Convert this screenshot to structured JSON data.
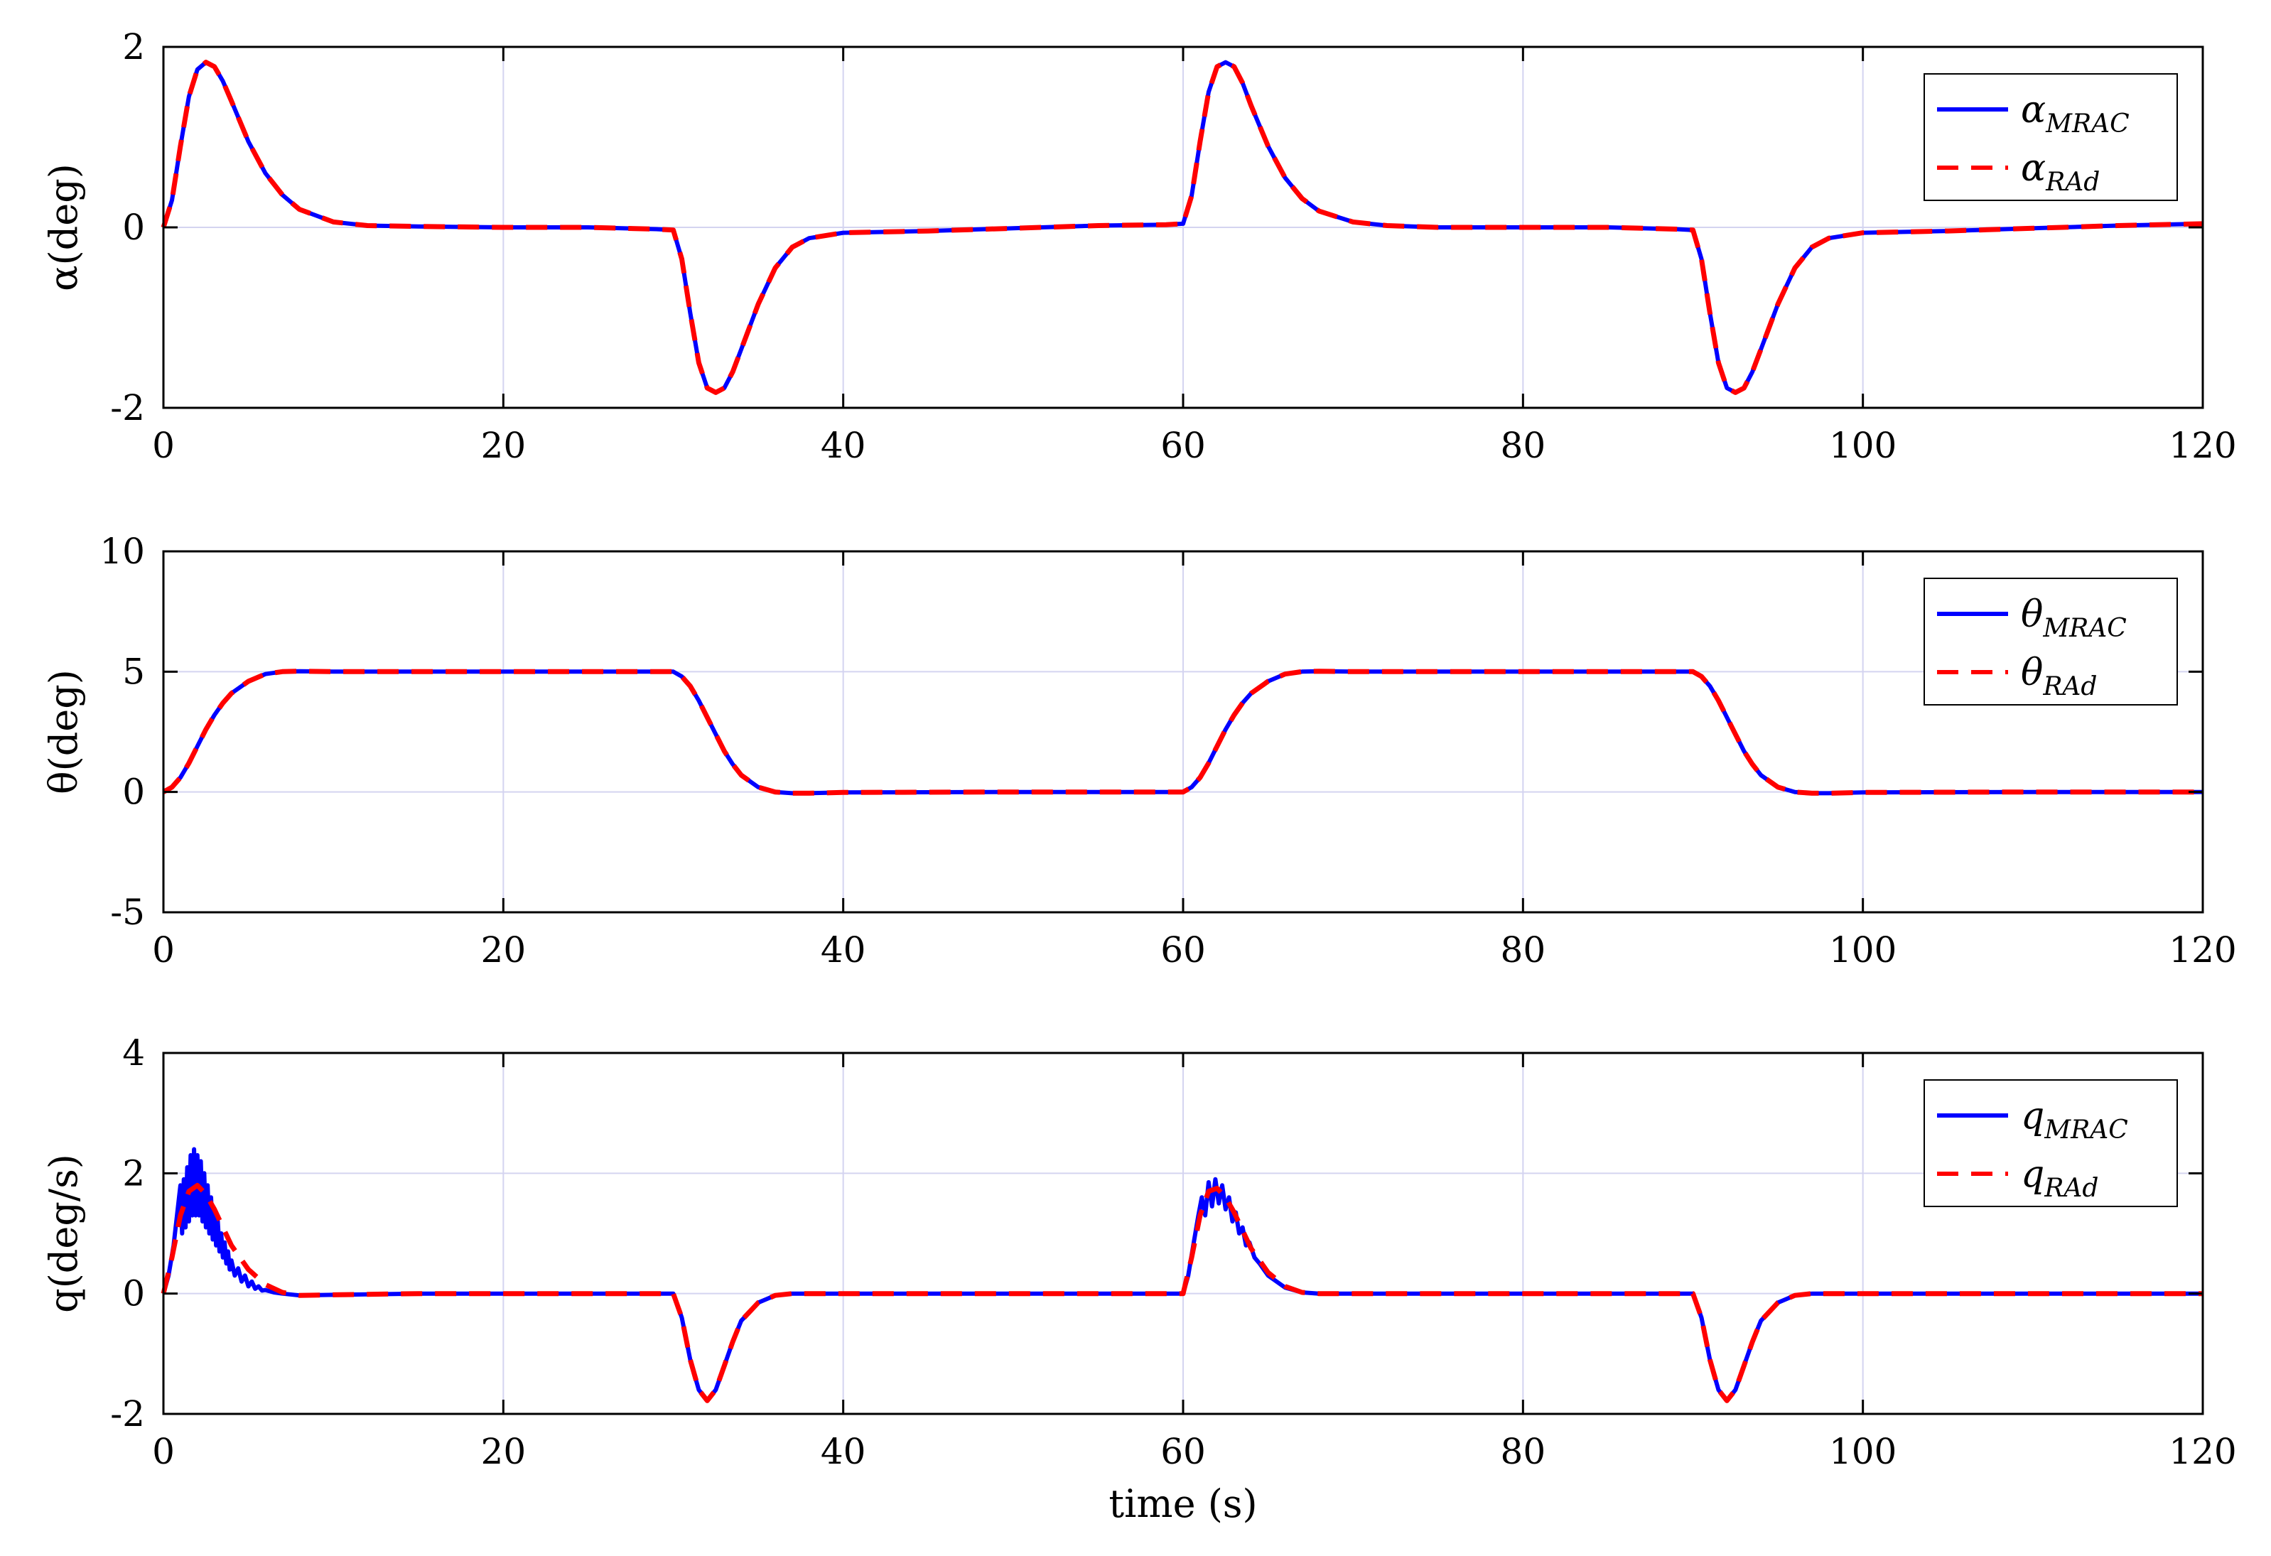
{
  "chart_data": [
    {
      "type": "line",
      "ylabel": "α(deg)",
      "xlim": [
        0,
        120
      ],
      "ylim": [
        -2,
        2
      ],
      "xticks": [
        0,
        20,
        40,
        60,
        80,
        100,
        120
      ],
      "yticks": [
        -2,
        0,
        2
      ],
      "grid": true,
      "legend_position": "top-right",
      "series": [
        {
          "name": "α_MRAC",
          "legend_base": "α",
          "legend_sub": "MRAC",
          "color": "#0000ff",
          "style": "solid",
          "x": [
            0,
            0.5,
            1,
            1.5,
            2,
            2.5,
            3,
            3.5,
            4,
            5,
            6,
            7,
            8,
            10,
            12,
            15,
            20,
            25,
            29,
            30,
            30.5,
            31,
            31.5,
            32,
            32.5,
            33,
            33.5,
            34,
            35,
            36,
            37,
            38,
            40,
            45,
            50,
            55,
            59,
            60,
            60.5,
            61,
            61.5,
            62,
            62.5,
            63,
            63.5,
            64,
            65,
            66,
            67,
            68,
            70,
            72,
            75,
            80,
            85,
            89,
            90,
            90.5,
            91,
            91.5,
            92,
            92.5,
            93,
            93.5,
            94,
            95,
            96,
            97,
            98,
            100,
            105,
            110,
            115,
            120
          ],
          "y": [
            0,
            0.3,
            0.9,
            1.45,
            1.75,
            1.83,
            1.78,
            1.62,
            1.4,
            0.95,
            0.6,
            0.36,
            0.2,
            0.06,
            0.02,
            0.01,
            0.0,
            0.0,
            -0.02,
            -0.03,
            -0.35,
            -0.95,
            -1.5,
            -1.78,
            -1.83,
            -1.78,
            -1.6,
            -1.35,
            -0.85,
            -0.45,
            -0.22,
            -0.12,
            -0.06,
            -0.04,
            -0.01,
            0.02,
            0.03,
            0.04,
            0.35,
            0.95,
            1.5,
            1.78,
            1.83,
            1.78,
            1.6,
            1.35,
            0.9,
            0.55,
            0.32,
            0.18,
            0.06,
            0.02,
            0.0,
            0.0,
            0.0,
            -0.02,
            -0.03,
            -0.35,
            -0.95,
            -1.5,
            -1.78,
            -1.83,
            -1.78,
            -1.6,
            -1.35,
            -0.85,
            -0.45,
            -0.22,
            -0.12,
            -0.06,
            -0.04,
            -0.01,
            0.02,
            0.04
          ]
        },
        {
          "name": "α_RAd",
          "legend_base": "α",
          "legend_sub": "RAd",
          "color": "#ff0000",
          "style": "dashed",
          "x": [
            0,
            0.5,
            1,
            1.5,
            2,
            2.5,
            3,
            3.5,
            4,
            5,
            6,
            7,
            8,
            10,
            12,
            15,
            20,
            25,
            29,
            30,
            30.5,
            31,
            31.5,
            32,
            32.5,
            33,
            33.5,
            34,
            35,
            36,
            37,
            38,
            40,
            45,
            50,
            55,
            59,
            60,
            60.5,
            61,
            61.5,
            62,
            62.5,
            63,
            63.5,
            64,
            65,
            66,
            67,
            68,
            70,
            72,
            75,
            80,
            85,
            89,
            90,
            90.5,
            91,
            91.5,
            92,
            92.5,
            93,
            93.5,
            94,
            95,
            96,
            97,
            98,
            100,
            105,
            110,
            115,
            120
          ],
          "y": [
            0,
            0.3,
            0.9,
            1.45,
            1.75,
            1.83,
            1.78,
            1.62,
            1.4,
            0.95,
            0.6,
            0.36,
            0.2,
            0.06,
            0.02,
            0.01,
            0.0,
            0.0,
            -0.02,
            -0.03,
            -0.35,
            -0.95,
            -1.5,
            -1.78,
            -1.83,
            -1.78,
            -1.6,
            -1.35,
            -0.85,
            -0.45,
            -0.22,
            -0.12,
            -0.06,
            -0.04,
            -0.01,
            0.02,
            0.03,
            0.04,
            0.35,
            0.95,
            1.5,
            1.78,
            1.83,
            1.78,
            1.6,
            1.35,
            0.9,
            0.55,
            0.32,
            0.18,
            0.06,
            0.02,
            0.0,
            0.0,
            0.0,
            -0.02,
            -0.03,
            -0.35,
            -0.95,
            -1.5,
            -1.78,
            -1.83,
            -1.78,
            -1.6,
            -1.35,
            -0.85,
            -0.45,
            -0.22,
            -0.12,
            -0.06,
            -0.04,
            -0.01,
            0.02,
            0.04
          ]
        }
      ]
    },
    {
      "type": "line",
      "ylabel": "θ(deg)",
      "xlim": [
        0,
        120
      ],
      "ylim": [
        -5,
        10
      ],
      "xticks": [
        0,
        20,
        40,
        60,
        80,
        100,
        120
      ],
      "yticks": [
        -5,
        0,
        5,
        10
      ],
      "grid": true,
      "legend_position": "top-right",
      "series": [
        {
          "name": "θ_MRAC",
          "legend_base": "θ",
          "legend_sub": "MRAC",
          "color": "#0000ff",
          "style": "solid",
          "x": [
            0,
            0.5,
            1,
            1.5,
            2,
            2.5,
            3,
            3.5,
            4,
            5,
            6,
            7,
            8,
            10,
            20,
            30,
            30.5,
            31,
            31.5,
            32,
            32.5,
            33,
            33.5,
            34,
            35,
            36,
            37,
            38,
            40,
            50,
            60,
            60.5,
            61,
            61.5,
            62,
            62.5,
            63,
            63.5,
            64,
            65,
            66,
            67,
            68,
            70,
            80,
            90,
            90.5,
            91,
            91.5,
            92,
            92.5,
            93,
            93.5,
            94,
            95,
            96,
            97,
            98,
            100,
            110,
            120
          ],
          "y": [
            0,
            0.2,
            0.6,
            1.2,
            1.9,
            2.6,
            3.2,
            3.7,
            4.1,
            4.6,
            4.9,
            5.0,
            5.02,
            5.0,
            5.0,
            5.0,
            4.8,
            4.4,
            3.8,
            3.1,
            2.4,
            1.7,
            1.15,
            0.7,
            0.2,
            0.0,
            -0.05,
            -0.05,
            -0.02,
            0.0,
            0.0,
            0.2,
            0.6,
            1.2,
            1.9,
            2.6,
            3.2,
            3.7,
            4.1,
            4.6,
            4.9,
            5.0,
            5.02,
            5.0,
            5.0,
            5.0,
            4.8,
            4.4,
            3.8,
            3.1,
            2.4,
            1.7,
            1.15,
            0.7,
            0.2,
            0.0,
            -0.05,
            -0.05,
            -0.02,
            0.0,
            0.0
          ]
        },
        {
          "name": "θ_RAd",
          "legend_base": "θ",
          "legend_sub": "RAd",
          "color": "#ff0000",
          "style": "dashed",
          "x": [
            0,
            0.5,
            1,
            1.5,
            2,
            2.5,
            3,
            3.5,
            4,
            5,
            6,
            7,
            8,
            10,
            20,
            30,
            30.5,
            31,
            31.5,
            32,
            32.5,
            33,
            33.5,
            34,
            35,
            36,
            37,
            38,
            40,
            50,
            60,
            60.5,
            61,
            61.5,
            62,
            62.5,
            63,
            63.5,
            64,
            65,
            66,
            67,
            68,
            70,
            80,
            90,
            90.5,
            91,
            91.5,
            92,
            92.5,
            93,
            93.5,
            94,
            95,
            96,
            97,
            98,
            100,
            110,
            120
          ],
          "y": [
            0,
            0.2,
            0.6,
            1.2,
            1.9,
            2.6,
            3.2,
            3.7,
            4.1,
            4.6,
            4.9,
            5.0,
            5.02,
            5.0,
            5.0,
            5.0,
            4.8,
            4.4,
            3.8,
            3.1,
            2.4,
            1.7,
            1.15,
            0.7,
            0.2,
            0.0,
            -0.05,
            -0.05,
            -0.02,
            0.0,
            0.0,
            0.2,
            0.6,
            1.2,
            1.9,
            2.6,
            3.2,
            3.7,
            4.1,
            4.6,
            4.9,
            5.0,
            5.02,
            5.0,
            5.0,
            5.0,
            4.8,
            4.4,
            3.8,
            3.1,
            2.4,
            1.7,
            1.15,
            0.7,
            0.2,
            0.0,
            -0.05,
            -0.05,
            -0.02,
            0.0,
            0.0
          ]
        }
      ]
    },
    {
      "type": "line",
      "ylabel": "q(deg/s)",
      "xlabel": "time (s)",
      "xlim": [
        0,
        120
      ],
      "ylim": [
        -2,
        4
      ],
      "xticks": [
        0,
        20,
        40,
        60,
        80,
        100,
        120
      ],
      "yticks": [
        -2,
        0,
        2,
        4
      ],
      "grid": true,
      "legend_position": "top-right",
      "series": [
        {
          "name": "q_MRAC",
          "legend_base": "q",
          "legend_sub": "MRAC",
          "color": "#0000ff",
          "style": "solid",
          "x": [
            0,
            0.3,
            0.6,
            0.8,
            1.0,
            1.1,
            1.2,
            1.3,
            1.4,
            1.5,
            1.6,
            1.7,
            1.8,
            1.9,
            2.0,
            2.1,
            2.2,
            2.3,
            2.4,
            2.5,
            2.6,
            2.7,
            2.8,
            2.9,
            3.0,
            3.1,
            3.2,
            3.3,
            3.4,
            3.5,
            3.6,
            3.7,
            3.8,
            3.9,
            4.0,
            4.2,
            4.4,
            4.6,
            4.8,
            5.0,
            5.2,
            5.4,
            5.6,
            5.8,
            6.0,
            6.5,
            7,
            8,
            10,
            15,
            20,
            25,
            30,
            30.5,
            31,
            31.5,
            32,
            32.5,
            33,
            33.5,
            34,
            35,
            36,
            37,
            40,
            50,
            60,
            60.3,
            60.6,
            60.9,
            61.1,
            61.3,
            61.5,
            61.7,
            61.9,
            62.1,
            62.3,
            62.5,
            62.7,
            62.9,
            63.1,
            63.3,
            63.5,
            63.7,
            63.9,
            64.2,
            64.5,
            65,
            65.5,
            66,
            67,
            68,
            70,
            80,
            90,
            90.5,
            91,
            91.5,
            92,
            92.5,
            93,
            93.5,
            94,
            95,
            96,
            97,
            100,
            110,
            120
          ],
          "y": [
            0,
            0.3,
            0.8,
            1.3,
            1.8,
            1.0,
            1.9,
            1.1,
            2.1,
            1.2,
            2.3,
            1.3,
            2.4,
            1.3,
            2.3,
            1.3,
            2.2,
            1.2,
            2.0,
            1.1,
            1.8,
            1.0,
            1.6,
            0.9,
            1.4,
            0.8,
            1.2,
            0.7,
            1.0,
            0.6,
            0.85,
            0.5,
            0.7,
            0.4,
            0.55,
            0.3,
            0.42,
            0.2,
            0.3,
            0.12,
            0.2,
            0.08,
            0.12,
            0.05,
            0.06,
            0.02,
            0.0,
            -0.03,
            -0.02,
            0.0,
            0.0,
            0.0,
            0.0,
            -0.4,
            -1.1,
            -1.6,
            -1.78,
            -1.6,
            -1.2,
            -0.8,
            -0.45,
            -0.15,
            -0.03,
            0.0,
            0.0,
            0.0,
            0.0,
            0.3,
            0.8,
            1.3,
            1.6,
            1.3,
            1.85,
            1.45,
            1.9,
            1.5,
            1.8,
            1.4,
            1.6,
            1.2,
            1.35,
            1.0,
            1.1,
            0.8,
            0.85,
            0.6,
            0.5,
            0.3,
            0.2,
            0.1,
            0.02,
            0.0,
            0.0,
            0.0,
            0.0,
            -0.4,
            -1.1,
            -1.6,
            -1.78,
            -1.6,
            -1.2,
            -0.8,
            -0.45,
            -0.15,
            -0.03,
            0.0,
            0.0,
            0.0,
            0.0
          ]
        },
        {
          "name": "q_RAd",
          "legend_base": "q",
          "legend_sub": "RAd",
          "color": "#ff0000",
          "style": "dashed",
          "x": [
            0,
            0.5,
            1,
            1.5,
            2,
            2.5,
            3,
            3.5,
            4,
            5,
            6,
            7,
            8,
            10,
            15,
            20,
            25,
            30,
            30.5,
            31,
            31.5,
            32,
            32.5,
            33,
            33.5,
            34,
            35,
            36,
            37,
            40,
            50,
            60,
            60.5,
            61,
            61.5,
            62,
            62.5,
            63,
            63.5,
            64,
            65,
            66,
            67,
            68,
            70,
            80,
            90,
            90.5,
            91,
            91.5,
            92,
            92.5,
            93,
            93.5,
            94,
            95,
            96,
            97,
            100,
            110,
            120
          ],
          "y": [
            0,
            0.6,
            1.3,
            1.7,
            1.8,
            1.65,
            1.4,
            1.1,
            0.8,
            0.4,
            0.15,
            0.02,
            -0.03,
            -0.02,
            0.0,
            0.0,
            0.0,
            0.0,
            -0.4,
            -1.1,
            -1.6,
            -1.78,
            -1.6,
            -1.2,
            -0.8,
            -0.45,
            -0.15,
            -0.03,
            0.0,
            0.0,
            0.0,
            0.0,
            0.6,
            1.3,
            1.7,
            1.75,
            1.6,
            1.35,
            1.05,
            0.75,
            0.35,
            0.12,
            0.02,
            0.0,
            0.0,
            0.0,
            0.0,
            -0.4,
            -1.1,
            -1.6,
            -1.78,
            -1.6,
            -1.2,
            -0.8,
            -0.45,
            -0.15,
            -0.03,
            0.0,
            0.0,
            0.0,
            0.0
          ]
        }
      ]
    }
  ]
}
